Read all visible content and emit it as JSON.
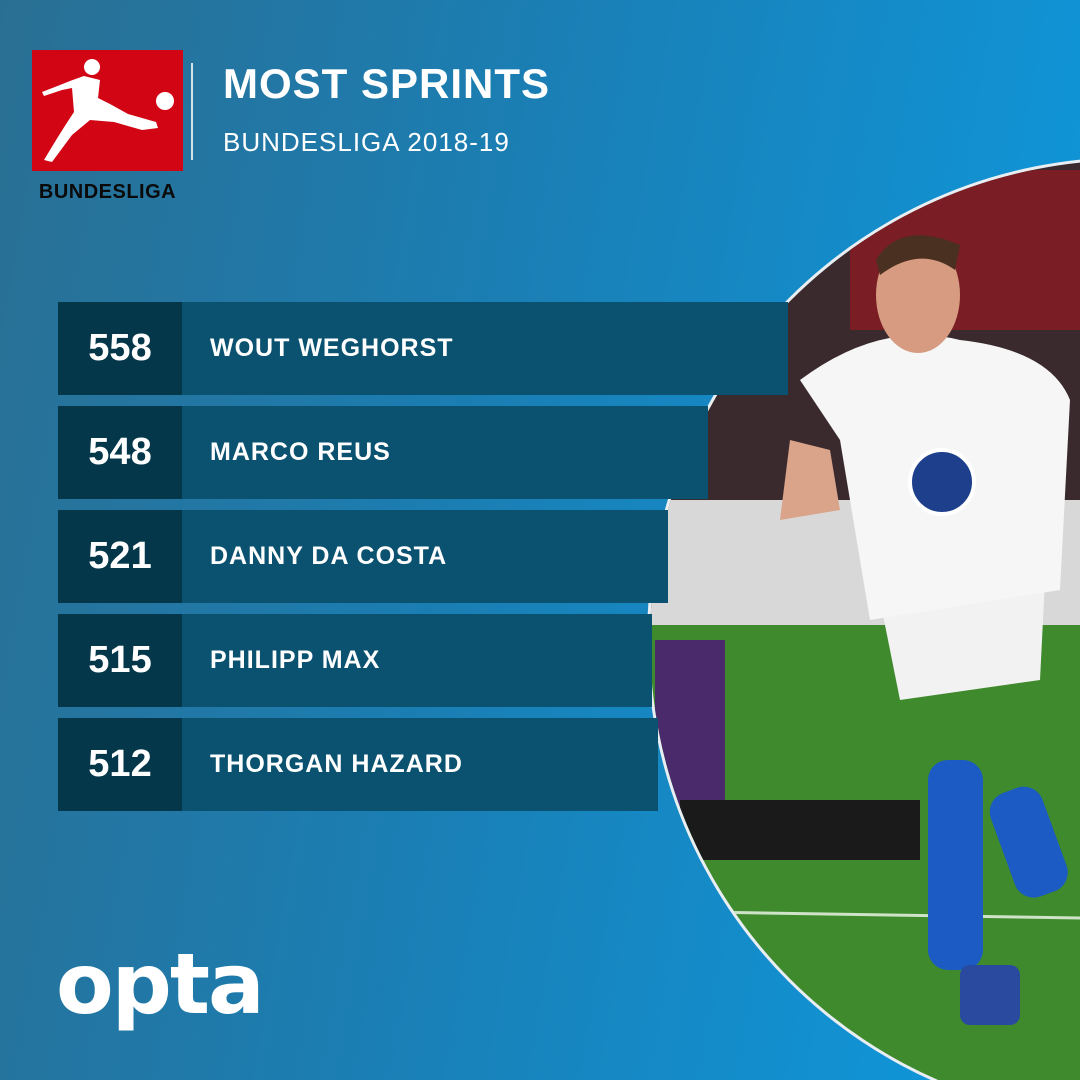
{
  "header": {
    "title": "MOST SPRINTS",
    "subtitle": "BUNDESLIGA 2018-19"
  },
  "logo": {
    "text": "BUNDESLIGA",
    "color": "#d20515"
  },
  "rankings": [
    {
      "value": "558",
      "player": "WOUT WEGHORST"
    },
    {
      "value": "548",
      "player": "MARCO REUS"
    },
    {
      "value": "521",
      "player": "DANNY DA COSTA"
    },
    {
      "value": "515",
      "player": "PHILIPP MAX"
    },
    {
      "value": "512",
      "player": "THORGAN HAZARD"
    }
  ],
  "footer": {
    "brand": "opta"
  },
  "colors": {
    "number_cell": "#04374a",
    "name_cell": "#0b5270",
    "background": "#1a7fb5"
  }
}
